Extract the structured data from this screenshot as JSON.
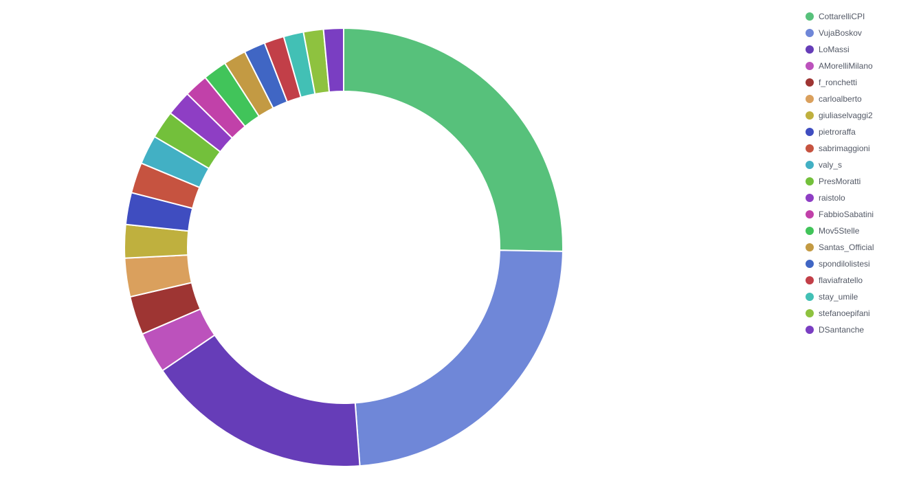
{
  "chart_data": {
    "type": "pie",
    "variant": "donut",
    "start_angle_deg": 0,
    "direction": "clockwise",
    "legend_position": "right",
    "slices": [
      {
        "label": "CottarelliCPI",
        "value": 25.8,
        "color": "#57c17b"
      },
      {
        "label": "VujaBoskov",
        "value": 24.0,
        "color": "#6f87d8"
      },
      {
        "label": "LoMassi",
        "value": 17.0,
        "color": "#663db8"
      },
      {
        "label": "AMorelliMilano",
        "value": 3.1,
        "color": "#bc52bc"
      },
      {
        "label": "f_ronchetti",
        "value": 2.9,
        "color": "#9e3533"
      },
      {
        "label": "carloalberto",
        "value": 2.9,
        "color": "#daa05d"
      },
      {
        "label": "giuliaselvaggi2",
        "value": 2.5,
        "color": "#bfb03e"
      },
      {
        "label": "pietroraffa",
        "value": 2.4,
        "color": "#3f4dc0"
      },
      {
        "label": "sabrimaggioni",
        "value": 2.3,
        "color": "#c65340"
      },
      {
        "label": "valy_s",
        "value": 2.2,
        "color": "#42b0c4"
      },
      {
        "label": "PresMoratti",
        "value": 2.1,
        "color": "#73c03b"
      },
      {
        "label": "raistolo",
        "value": 1.9,
        "color": "#8e3ec4"
      },
      {
        "label": "FabbioSabatini",
        "value": 1.8,
        "color": "#c141a9"
      },
      {
        "label": "Mov5Stelle",
        "value": 1.8,
        "color": "#41c45a"
      },
      {
        "label": "Santas_Official",
        "value": 1.7,
        "color": "#c39a43"
      },
      {
        "label": "spondilolistesi",
        "value": 1.6,
        "color": "#4066c4"
      },
      {
        "label": "flaviafratello",
        "value": 1.5,
        "color": "#c23f48"
      },
      {
        "label": "stay_umile",
        "value": 1.5,
        "color": "#42c0b5"
      },
      {
        "label": "stefanoepifani",
        "value": 1.5,
        "color": "#8ec23f"
      },
      {
        "label": "DSantanche",
        "value": 1.5,
        "color": "#7a3ec2"
      }
    ]
  }
}
